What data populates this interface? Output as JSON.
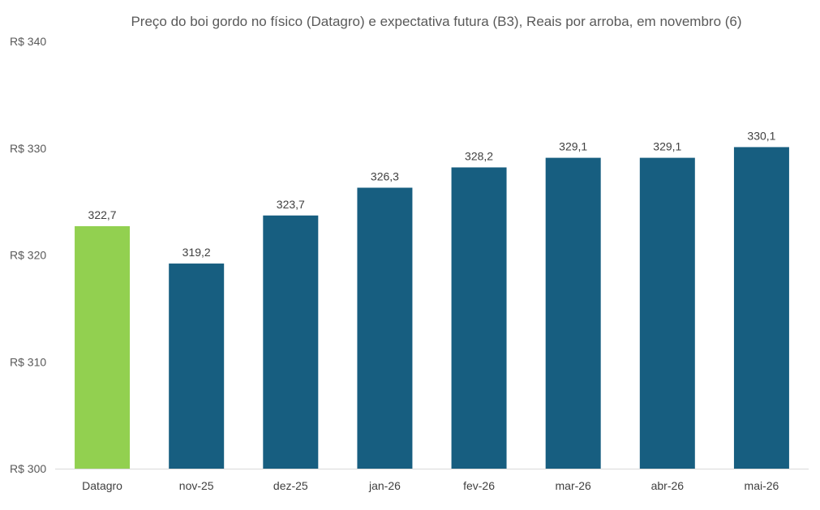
{
  "chart_data": {
    "type": "bar",
    "title": "Preço do boi gordo no físico (Datagro)  e expectativa futura (B3), Reais por arroba, em novembro (6)",
    "xlabel": "",
    "ylabel": "",
    "categories": [
      "Datagro",
      "nov-25",
      "dez-25",
      "jan-26",
      "fev-26",
      "mar-26",
      "abr-26",
      "mai-26"
    ],
    "values": [
      322.7,
      319.2,
      323.7,
      326.3,
      328.2,
      329.1,
      329.1,
      330.1
    ],
    "value_labels": [
      "322,7",
      "319,2",
      "323,7",
      "326,3",
      "328,2",
      "329,1",
      "329,1",
      "330,1"
    ],
    "ylim": [
      300,
      340
    ],
    "yticks": [
      300,
      310,
      320,
      330,
      340
    ],
    "ytick_labels": [
      "R$ 300",
      "R$ 310",
      "R$ 320",
      "R$ 330",
      "R$ 340"
    ],
    "grid": false,
    "legend": "none",
    "colors": {
      "highlight": "#92d050",
      "default": "#175e80",
      "axis": "#d9d9d9"
    }
  }
}
